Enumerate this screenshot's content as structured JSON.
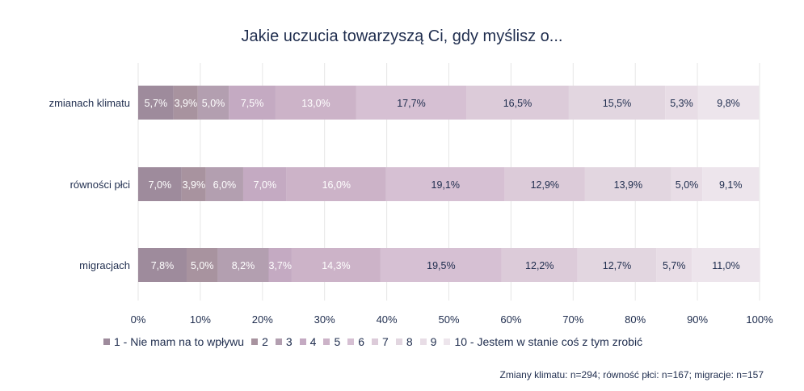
{
  "chart_data": {
    "type": "bar",
    "orientation": "horizontal",
    "stacked": true,
    "title": "Jakie uczucia towarzyszą Ci, gdy myślisz o...",
    "categories": [
      "zmianach klimatu",
      "równości płci",
      "migracjach"
    ],
    "series": [
      {
        "name": "1 - Nie mam na to wpływu",
        "color": "#9e8b9c",
        "values": [
          5.7,
          7.0,
          7.8
        ],
        "labels": [
          "5,7%",
          "7,0%",
          "7,8%"
        ]
      },
      {
        "name": "2",
        "color": "#a8939f",
        "values": [
          3.9,
          3.9,
          5.0
        ],
        "labels": [
          "3,9%",
          "3,9%",
          "5,0%"
        ]
      },
      {
        "name": "3",
        "color": "#b39fb0",
        "values": [
          5.0,
          6.0,
          8.2
        ],
        "labels": [
          "5,0%",
          "6,0%",
          "8,2%"
        ]
      },
      {
        "name": "4",
        "color": "#c4aac2",
        "values": [
          7.5,
          7.0,
          3.7
        ],
        "labels": [
          "7,5%",
          "7,0%",
          "3,7%"
        ]
      },
      {
        "name": "5",
        "color": "#ccb3c8",
        "values": [
          13.0,
          16.0,
          14.3
        ],
        "labels": [
          "13,0%",
          "16,0%",
          "14,3%"
        ]
      },
      {
        "name": "6",
        "color": "#d6c0d3",
        "values": [
          17.7,
          19.1,
          19.5
        ],
        "labels": [
          "17,7%",
          "19,1%",
          "19,5%"
        ]
      },
      {
        "name": "7",
        "color": "#dccbd9",
        "values": [
          16.5,
          12.9,
          12.2
        ],
        "labels": [
          "16,5%",
          "12,9%",
          "12,2%"
        ]
      },
      {
        "name": "8",
        "color": "#e2d6e0",
        "values": [
          15.5,
          13.9,
          12.7
        ],
        "labels": [
          "15,5%",
          "13,9%",
          "12,7%"
        ]
      },
      {
        "name": "9",
        "color": "#e8dde6",
        "values": [
          5.3,
          5.0,
          5.7
        ],
        "labels": [
          "5,3%",
          "5,0%",
          "5,7%"
        ]
      },
      {
        "name": "10 - Jestem w stanie coś z tym zrobić",
        "color": "#ede5ec",
        "values": [
          9.8,
          9.1,
          11.0
        ],
        "labels": [
          "9,8%",
          "9,1%",
          "11,0%"
        ]
      }
    ],
    "xlim": [
      0,
      100
    ],
    "xticks": [
      "0%",
      "10%",
      "20%",
      "30%",
      "40%",
      "50%",
      "60%",
      "70%",
      "80%",
      "90%",
      "100%"
    ],
    "grid": true,
    "legend_position": "bottom",
    "value_label_color": "#ffffff",
    "text_color": "#1f2d4e",
    "footnote": "Zmiany klimatu: n=294; równość płci: n=167; migracje: n=157"
  }
}
